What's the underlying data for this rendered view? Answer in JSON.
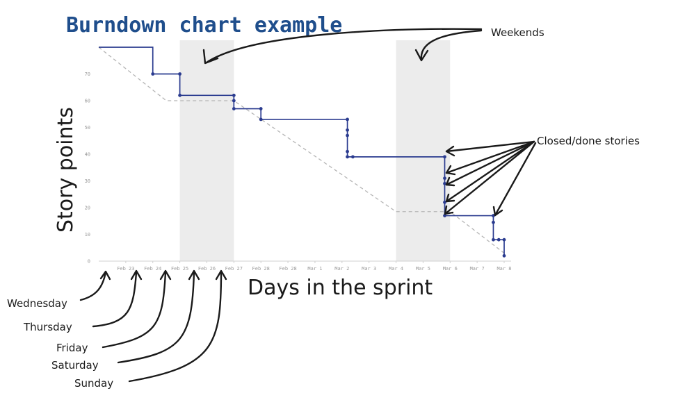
{
  "title": "Burndown chart example",
  "chart_data": {
    "type": "line",
    "ylabel": "Story points",
    "xlabel": "Days in the sprint",
    "ylim": [
      0,
      80
    ],
    "yticks": [
      0,
      10,
      20,
      30,
      40,
      50,
      60,
      70
    ],
    "xlim": [
      0,
      15
    ],
    "xticks": [
      {
        "x": 1,
        "label": "Feb 23"
      },
      {
        "x": 2,
        "label": "Feb 24"
      },
      {
        "x": 3,
        "label": "Feb 25"
      },
      {
        "x": 4,
        "label": "Feb 26"
      },
      {
        "x": 5,
        "label": "Feb 27"
      },
      {
        "x": 6,
        "label": "Feb 28"
      },
      {
        "x": 7,
        "label": "Feb 28"
      },
      {
        "x": 8,
        "label": "Mar 1"
      },
      {
        "x": 9,
        "label": "Mar 2"
      },
      {
        "x": 10,
        "label": "Mar 3"
      },
      {
        "x": 11,
        "label": "Mar 4"
      },
      {
        "x": 12,
        "label": "Mar 5"
      },
      {
        "x": 13,
        "label": "Mar 6"
      },
      {
        "x": 14,
        "label": "Mar 7"
      },
      {
        "x": 15,
        "label": "Mar 8"
      }
    ],
    "weekends": [
      [
        3,
        5
      ],
      [
        11,
        13
      ]
    ],
    "ideal": [
      {
        "x": 0,
        "y": 80
      },
      {
        "x": 2.5,
        "y": 60
      },
      {
        "x": 5,
        "y": 60
      },
      {
        "x": 11,
        "y": 18.5
      },
      {
        "x": 13,
        "y": 18.5
      },
      {
        "x": 15,
        "y": 3
      }
    ],
    "actual_steps": [
      {
        "x": 0,
        "y": 80
      },
      {
        "x": 2,
        "y": 80
      },
      {
        "x": 2,
        "y": 70
      },
      {
        "x": 3,
        "y": 70
      },
      {
        "x": 3,
        "y": 62
      },
      {
        "x": 5,
        "y": 62
      },
      {
        "x": 5,
        "y": 57
      },
      {
        "x": 6,
        "y": 57
      },
      {
        "x": 6,
        "y": 53
      },
      {
        "x": 9.2,
        "y": 53
      },
      {
        "x": 9.2,
        "y": 39
      },
      {
        "x": 12.8,
        "y": 39
      },
      {
        "x": 12.8,
        "y": 17
      },
      {
        "x": 14.6,
        "y": 17
      },
      {
        "x": 14.6,
        "y": 8
      },
      {
        "x": 15,
        "y": 8
      },
      {
        "x": 15,
        "y": 2
      }
    ],
    "closed_points": [
      {
        "x": 2,
        "y": 70
      },
      {
        "x": 3,
        "y": 70
      },
      {
        "x": 3,
        "y": 62
      },
      {
        "x": 5,
        "y": 62
      },
      {
        "x": 5,
        "y": 60
      },
      {
        "x": 5,
        "y": 57
      },
      {
        "x": 6,
        "y": 57
      },
      {
        "x": 6,
        "y": 53
      },
      {
        "x": 9.2,
        "y": 53
      },
      {
        "x": 9.2,
        "y": 49
      },
      {
        "x": 9.2,
        "y": 47
      },
      {
        "x": 9.2,
        "y": 41
      },
      {
        "x": 9.2,
        "y": 39
      },
      {
        "x": 9.4,
        "y": 39
      },
      {
        "x": 12.8,
        "y": 39
      },
      {
        "x": 12.8,
        "y": 31
      },
      {
        "x": 12.8,
        "y": 29
      },
      {
        "x": 12.8,
        "y": 22
      },
      {
        "x": 12.8,
        "y": 17
      },
      {
        "x": 14.6,
        "y": 17
      },
      {
        "x": 14.6,
        "y": 14.5
      },
      {
        "x": 14.6,
        "y": 8
      },
      {
        "x": 14.8,
        "y": 8
      },
      {
        "x": 15,
        "y": 8
      },
      {
        "x": 15,
        "y": 2
      }
    ],
    "colors": {
      "actual": "#2a3b8f",
      "ideal": "#b5b5b5",
      "weekend": "#ececec",
      "title": "#1f4e8c"
    }
  },
  "annotations": {
    "weekends": "Weekends",
    "closed": "Closed/done stories",
    "days": [
      "Wednesday",
      "Thursday",
      "Friday",
      "Saturday",
      "Sunday"
    ]
  }
}
